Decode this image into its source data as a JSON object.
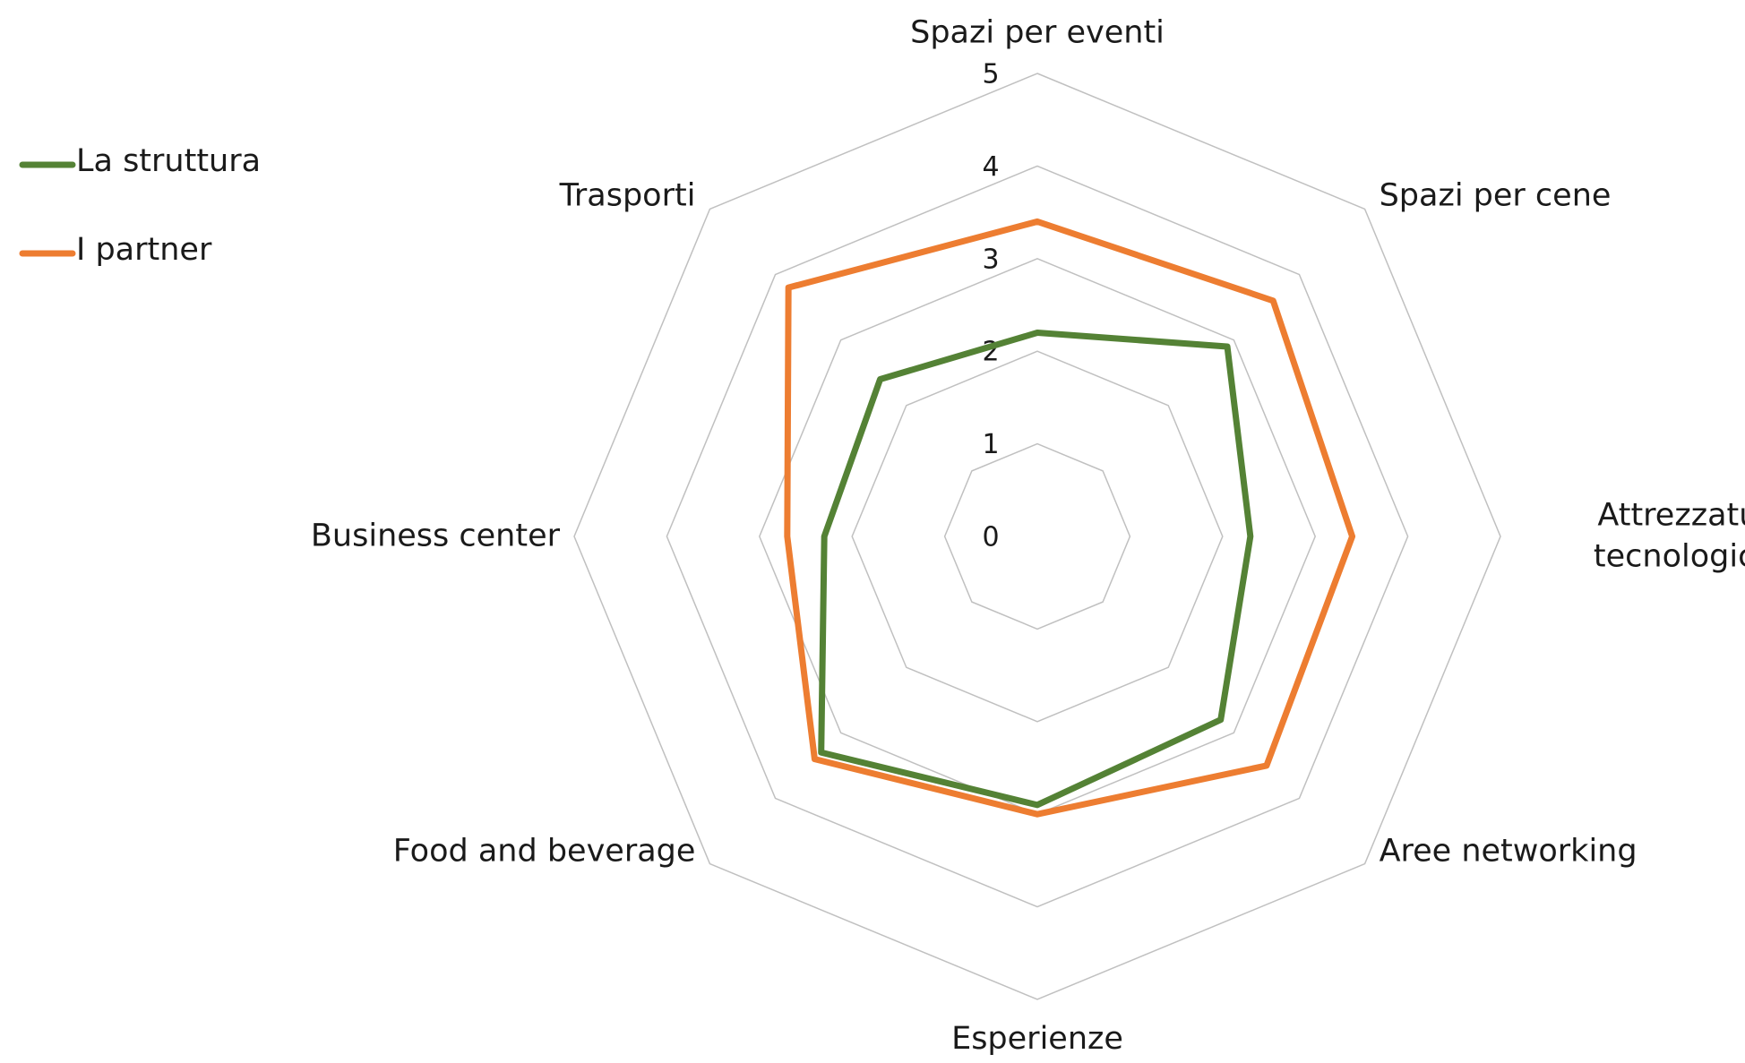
{
  "chart_data": {
    "type": "radar",
    "categories": [
      "Spazi per eventi",
      "Spazi per cene",
      "Attrezzature tecnologiche",
      "Aree networking",
      "Esperienze",
      "Food and beverage",
      "Business center",
      "Trasporti"
    ],
    "series": [
      {
        "name": "La struttura",
        "color": "#548235",
        "values": [
          2.2,
          2.9,
          2.3,
          2.8,
          2.9,
          3.3,
          2.3,
          2.4
        ]
      },
      {
        "name": "I partner",
        "color": "#ed7d31",
        "values": [
          3.4,
          3.6,
          3.4,
          3.5,
          3.0,
          3.4,
          2.7,
          3.8
        ]
      }
    ],
    "ylim": [
      0,
      5
    ],
    "yticks": [
      0,
      1,
      2,
      3,
      4,
      5
    ],
    "grid": true,
    "legend": "top-left"
  }
}
